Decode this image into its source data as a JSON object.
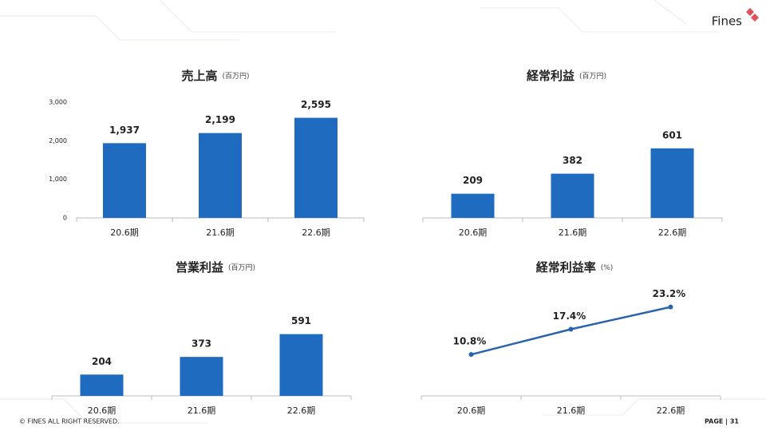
{
  "logo": "Fines",
  "footer": {
    "copyright": "© FINES ALL RIGHT RESERVED.",
    "page": "PAGE | 31"
  },
  "chart_data": [
    {
      "type": "bar",
      "title": "売上高",
      "subtitle": "(百万円)",
      "categories": [
        "20.6期",
        "21.6期",
        "22.6期"
      ],
      "values": [
        1937,
        2199,
        2595
      ],
      "value_labels": [
        "1,937",
        "2,199",
        "2,595"
      ],
      "color": "#1e6bbf",
      "ylim": [
        0,
        3000
      ],
      "yticks": [
        0,
        {
          "value": 1000,
          "label": "1,000"
        },
        {
          "value": 2000,
          "label": "2,000"
        },
        {
          "value": 3000,
          "label": "3,000"
        }
      ]
    },
    {
      "type": "bar",
      "title": "経常利益",
      "subtitle": "(百万円)",
      "categories": [
        "20.6期",
        "21.6期",
        "22.6期"
      ],
      "values": [
        209,
        382,
        601
      ],
      "color": "#1e6bbf",
      "ylim": [
        0,
        1000
      ]
    },
    {
      "type": "bar",
      "title": "営業利益",
      "subtitle": "(百万円)",
      "categories": [
        "20.6期",
        "21.6期",
        "22.6期"
      ],
      "values": [
        204,
        373,
        591
      ],
      "color": "#1e6bbf",
      "ylim": [
        0,
        1100
      ]
    },
    {
      "type": "line",
      "title": "経常利益率",
      "subtitle": "(%)",
      "categories": [
        "20.6期",
        "21.6期",
        "22.6期"
      ],
      "values": [
        10.8,
        17.4,
        23.2
      ],
      "value_labels": [
        "10.8%",
        "17.4%",
        "23.2%"
      ],
      "color": "#2a63ad",
      "ylim": [
        0,
        30
      ]
    }
  ]
}
